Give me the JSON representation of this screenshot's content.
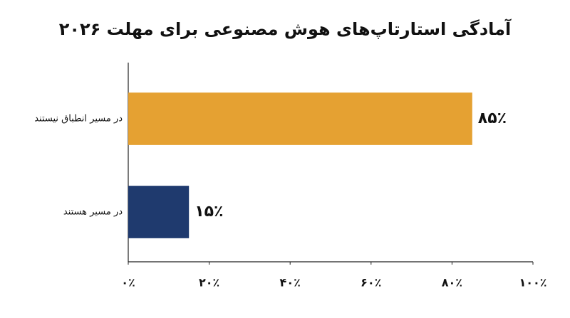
{
  "chart_data": {
    "type": "barh",
    "title": "آمادگی استارتاپ‌های هوش مصنوعی برای مهلت ۲۰۲۶",
    "categories": [
      "در مسیر انطباق نیستند",
      "در مسیر هستند"
    ],
    "values": [
      85,
      15
    ],
    "value_labels": [
      "۸۵٪",
      "۱۵٪"
    ],
    "colors": [
      "#e5a132",
      "#1f3a6e"
    ],
    "xlim": [
      0,
      100
    ],
    "xticks": [
      {
        "value": 0,
        "label": "۰٪"
      },
      {
        "value": 20,
        "label": "۲۰٪"
      },
      {
        "value": 40,
        "label": "۴۰٪"
      },
      {
        "value": 60,
        "label": "۶۰٪"
      },
      {
        "value": 80,
        "label": "۸۰٪"
      },
      {
        "value": 100,
        "label": "۱۰۰٪"
      }
    ]
  }
}
